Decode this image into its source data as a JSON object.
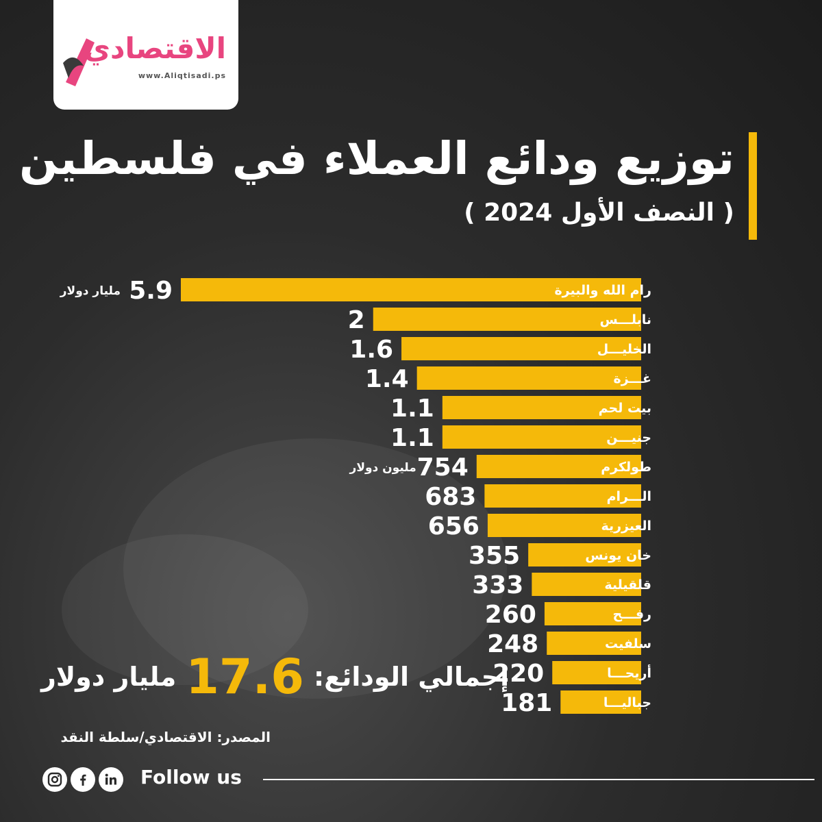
{
  "logo": {
    "name": "الاقتصادي",
    "url": "www.Aliqtisadi.ps"
  },
  "title": "توزيع ودائع العملاء في فلسطين",
  "subtitle": "( النصف الأول 2024 )",
  "chart_data": {
    "type": "bar",
    "orientation": "horizontal",
    "categories": [
      "رام الله والبيرة",
      "نابلـــس",
      "الخليـــل",
      "غـــزة",
      "بيت لحم",
      "جنيـــن",
      "طولكرم",
      "الـــرام",
      "العيزرية",
      "خان يونس",
      "قلقيلية",
      "رفـــح",
      "سلفيت",
      "أريحـــا",
      "جباليـــا"
    ],
    "value_labels": [
      "5.9",
      "2",
      "1.6",
      "1.4",
      "1.1",
      "1.1",
      "754",
      "683",
      "656",
      "355",
      "333",
      "260",
      "248",
      "220",
      "181"
    ],
    "values_million_usd": [
      5900,
      2000,
      1600,
      1400,
      1100,
      1100,
      754,
      683,
      656,
      355,
      333,
      260,
      248,
      220,
      181
    ],
    "unit_annotations": [
      {
        "index": 0,
        "text": "مليار دولار"
      },
      {
        "index": 6,
        "text": "مليون دولار"
      }
    ],
    "bar_color": "#f5b90a"
  },
  "total": {
    "label": "إجمالي الودائع:",
    "value": "17.6",
    "unit": "مليار دولار"
  },
  "source": "المصدر: الاقتصادي/سلطة النقد",
  "footer": {
    "follow_text": "Follow us",
    "icons": [
      "instagram-icon",
      "facebook-icon",
      "linkedin-icon"
    ]
  },
  "colors": {
    "accent": "#f5b90a",
    "logo_pink": "#e8457f"
  }
}
